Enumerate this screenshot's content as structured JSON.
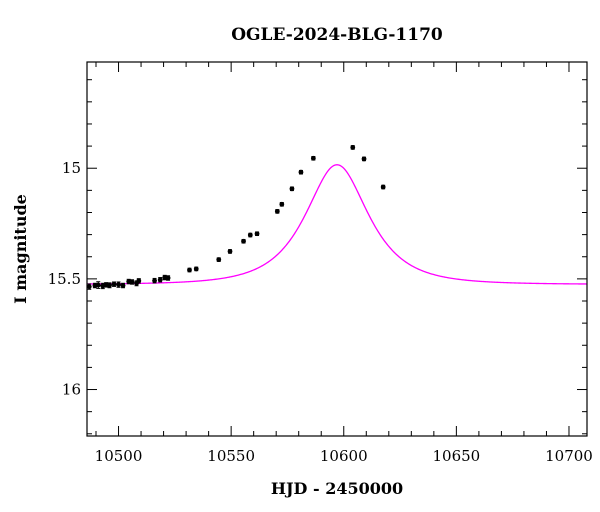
{
  "chart_data": {
    "type": "scatter",
    "title": "OGLE-2024-BLG-1170",
    "xlabel": "HJD - 2450000",
    "ylabel": "I magnitude",
    "xlim": [
      10486,
      10708
    ],
    "ylim": [
      16.21,
      14.52
    ],
    "y_inverted": true,
    "grid": false,
    "x_ticks": {
      "major": [
        10500,
        10550,
        10600,
        10650,
        10700
      ],
      "minor": [
        10490,
        10510,
        10520,
        10530,
        10540,
        10560,
        10570,
        10580,
        10590,
        10610,
        10620,
        10630,
        10640,
        10660,
        10670,
        10680,
        10690
      ]
    },
    "y_ticks": {
      "major": [
        15,
        15.5,
        16
      ],
      "minor": [
        14.6,
        14.7,
        14.8,
        14.9,
        15.1,
        15.2,
        15.3,
        15.4,
        15.6,
        15.7,
        15.8,
        15.9,
        16.1,
        16.2
      ]
    },
    "colors": {
      "points": "#000000",
      "model": "#ff00ff"
    },
    "model": {
      "kind": "point-lens",
      "t0": 10597,
      "tE": 20,
      "u0": 0.72,
      "base_mag": 15.525
    },
    "points": [
      {
        "x": 10487.0,
        "y": 15.535,
        "err": 0.012
      },
      {
        "x": 10489.5,
        "y": 15.53,
        "err": 0.01
      },
      {
        "x": 10491.0,
        "y": 15.528,
        "err": 0.015
      },
      {
        "x": 10493.0,
        "y": 15.532,
        "err": 0.012
      },
      {
        "x": 10494.5,
        "y": 15.527,
        "err": 0.01
      },
      {
        "x": 10496.0,
        "y": 15.529,
        "err": 0.011
      },
      {
        "x": 10498.0,
        "y": 15.524,
        "err": 0.01
      },
      {
        "x": 10500.0,
        "y": 15.526,
        "err": 0.012
      },
      {
        "x": 10502.0,
        "y": 15.53,
        "err": 0.01
      },
      {
        "x": 10504.5,
        "y": 15.512,
        "err": 0.01
      },
      {
        "x": 10506.0,
        "y": 15.514,
        "err": 0.01
      },
      {
        "x": 10508.0,
        "y": 15.52,
        "err": 0.011
      },
      {
        "x": 10509.0,
        "y": 15.509,
        "err": 0.01
      },
      {
        "x": 10516.0,
        "y": 15.508,
        "err": 0.01
      },
      {
        "x": 10518.5,
        "y": 15.504,
        "err": 0.01
      },
      {
        "x": 10520.5,
        "y": 15.494,
        "err": 0.01
      },
      {
        "x": 10522.0,
        "y": 15.496,
        "err": 0.01
      },
      {
        "x": 10531.5,
        "y": 15.46,
        "err": 0.008
      },
      {
        "x": 10534.5,
        "y": 15.455,
        "err": 0.008
      },
      {
        "x": 10544.5,
        "y": 15.413,
        "err": 0.008
      },
      {
        "x": 10549.5,
        "y": 15.376,
        "err": 0.008
      },
      {
        "x": 10555.5,
        "y": 15.33,
        "err": 0.008
      },
      {
        "x": 10558.5,
        "y": 15.302,
        "err": 0.008
      },
      {
        "x": 10561.5,
        "y": 15.296,
        "err": 0.008
      },
      {
        "x": 10570.5,
        "y": 15.195,
        "err": 0.008
      },
      {
        "x": 10572.5,
        "y": 15.163,
        "err": 0.008
      },
      {
        "x": 10577.0,
        "y": 15.093,
        "err": 0.008
      },
      {
        "x": 10581.0,
        "y": 15.018,
        "err": 0.008
      },
      {
        "x": 10586.5,
        "y": 14.955,
        "err": 0.008
      },
      {
        "x": 10604.0,
        "y": 14.906,
        "err": 0.008
      },
      {
        "x": 10609.0,
        "y": 14.958,
        "err": 0.008
      },
      {
        "x": 10617.5,
        "y": 15.085,
        "err": 0.008
      }
    ]
  }
}
